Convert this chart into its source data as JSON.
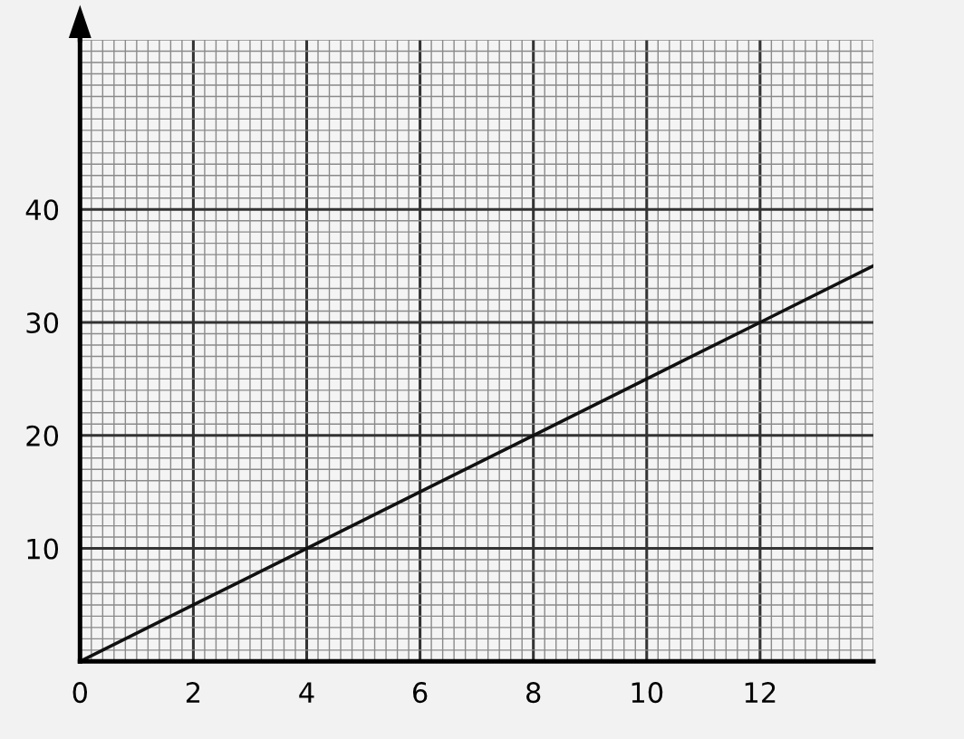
{
  "chart_data": {
    "type": "line",
    "x": [
      0,
      2,
      4,
      6,
      8,
      10,
      12,
      14
    ],
    "series": [
      {
        "color": "#111111",
        "values": [
          0,
          5,
          10,
          15,
          20,
          25,
          30,
          35
        ]
      }
    ],
    "xlim": [
      0,
      14
    ],
    "ylim": [
      0,
      55
    ],
    "xticks": [
      0,
      2,
      4,
      6,
      8,
      10,
      12
    ],
    "yticks": [
      10,
      20,
      30,
      40
    ],
    "grid": true,
    "marker": "none",
    "line_style": "solid"
  }
}
